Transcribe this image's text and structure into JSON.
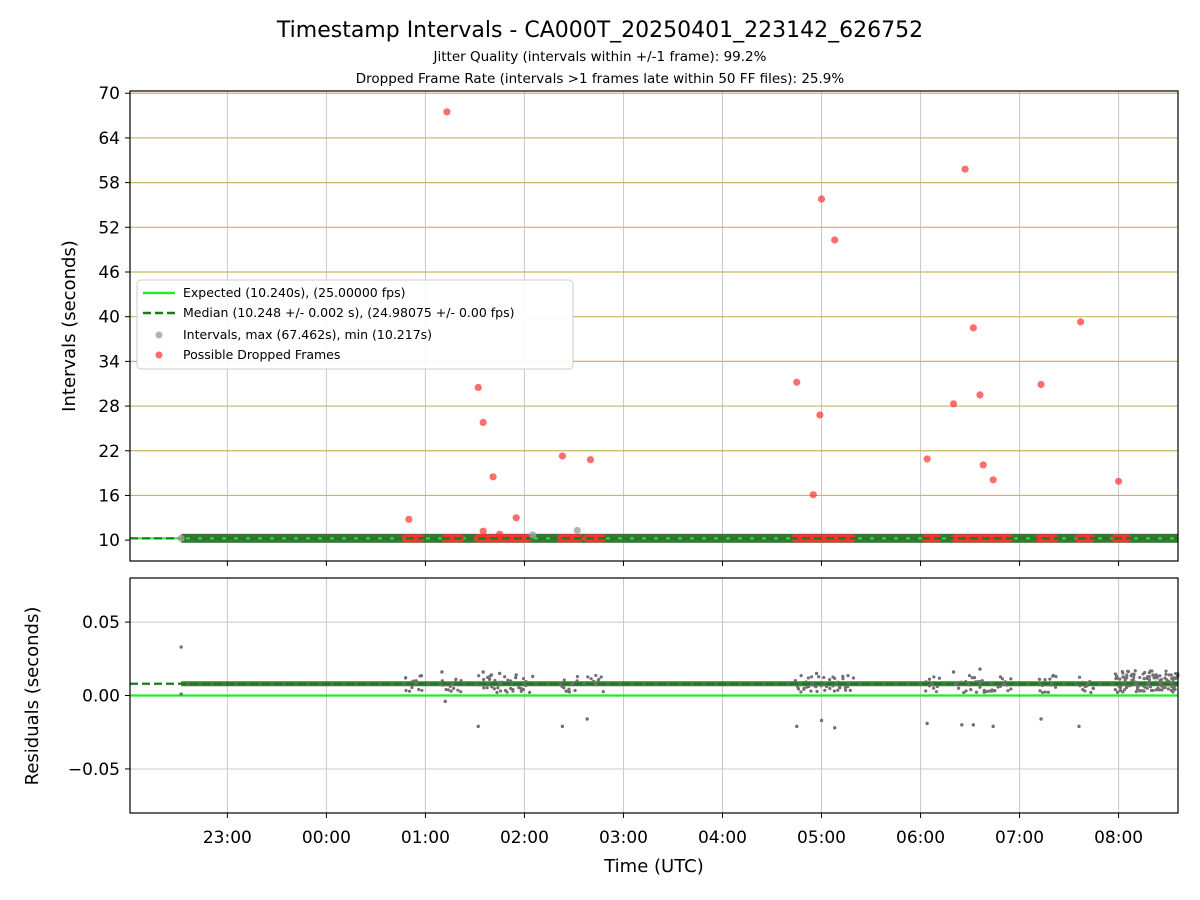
{
  "title": "Timestamp Intervals - CA000T_20250401_223142_626752",
  "subtitle_lines": [
    "Jitter Quality (intervals within +/-1 frame): 99.2%",
    "Dropped Frame Rate (intervals >1 frames late within 50 FF files): 25.9%"
  ],
  "colors": {
    "expected": "#22ee22",
    "median": "#1a7a1a",
    "interval_points": "#a0a0a0",
    "dropped_points": "#ff3030",
    "residual_points": "#707070",
    "top_gridlines": "#c8b464",
    "vertical_gridlines": "#c8c8c8",
    "median_band": "#2e6e2e"
  },
  "chart_data": [
    {
      "type": "scatter",
      "panel": "intervals",
      "xlabel": "",
      "ylabel": "Intervals (seconds)",
      "x_ticks": [
        "23:00",
        "00:00",
        "01:00",
        "02:00",
        "03:00",
        "04:00",
        "05:00",
        "06:00",
        "07:00",
        "08:00"
      ],
      "xlim": [
        "22:01",
        "08:36"
      ],
      "y_ticks": [
        10,
        16,
        22,
        28,
        34,
        40,
        46,
        52,
        58,
        64,
        70
      ],
      "ylim": [
        7.2,
        70.3
      ],
      "grid": "horizontal and vertical",
      "legend_position": "center-left",
      "legend": [
        "Expected (10.240s), (25.00000 fps)",
        "Median (10.248 +/- 0.002 s), (24.98075 +/- 0.00 fps)",
        "Intervals, max (67.462s), min (10.217s)",
        "Possible Dropped Frames"
      ],
      "expected_interval": 10.24,
      "median_interval": 10.248,
      "series": [
        {
          "name": "Intervals, max (67.462s), min (10.217s)",
          "x": [
            "22:32",
            "02:05",
            "02:32"
          ],
          "y": [
            10.25,
            10.7,
            11.3
          ]
        },
        {
          "name": "Possible Dropped Frames",
          "x": [
            "00:50",
            "01:13",
            "01:32",
            "01:35",
            "01:35",
            "01:41",
            "01:45",
            "01:55",
            "02:23",
            "02:40",
            "04:45",
            "04:55",
            "04:59",
            "05:00",
            "05:08",
            "06:04",
            "06:20",
            "06:27",
            "06:32",
            "06:36",
            "06:38",
            "06:44",
            "07:13",
            "07:37",
            "08:00"
          ],
          "y": [
            12.8,
            67.5,
            30.5,
            25.8,
            11.2,
            18.5,
            10.8,
            13.0,
            21.3,
            20.8,
            31.2,
            16.1,
            26.8,
            55.8,
            50.3,
            20.9,
            28.3,
            59.8,
            38.5,
            29.5,
            20.1,
            18.1,
            30.9,
            39.3,
            17.9
          ]
        }
      ],
      "dropped_clusters": [
        [
          "00:48",
          "00:58"
        ],
        [
          "01:12",
          "01:22"
        ],
        [
          "01:32",
          "01:52"
        ],
        [
          "01:53",
          "02:03"
        ],
        [
          "02:22",
          "02:33"
        ],
        [
          "02:38",
          "02:48"
        ],
        [
          "04:44",
          "05:19"
        ],
        [
          "06:03",
          "06:11"
        ],
        [
          "06:21",
          "06:55"
        ],
        [
          "07:12",
          "07:22"
        ],
        [
          "07:36",
          "07:45"
        ],
        [
          "07:58",
          "08:07"
        ]
      ]
    },
    {
      "type": "scatter",
      "panel": "residuals",
      "xlabel": "Time (UTC)",
      "ylabel": "Residuals (seconds)",
      "x_ticks": [
        "23:00",
        "00:00",
        "01:00",
        "02:00",
        "03:00",
        "04:00",
        "05:00",
        "06:00",
        "07:00",
        "08:00"
      ],
      "xlim": [
        "22:01",
        "08:36"
      ],
      "y_ticks": [
        -0.05,
        0.0,
        0.05
      ],
      "y_tick_labels": [
        "−0.05",
        "0.00",
        "0.05"
      ],
      "ylim": [
        -0.08,
        0.08
      ],
      "grid": "horizontal and vertical",
      "expected_residual": 0.0,
      "median_residual": 0.008,
      "series": [
        {
          "name": "",
          "x": [
            "22:32",
            "22:32",
            "00:48",
            "01:10",
            "01:12",
            "01:32",
            "01:35",
            "01:40",
            "01:45",
            "01:55",
            "02:05",
            "02:23",
            "02:38",
            "04:45",
            "04:57",
            "05:00",
            "05:08",
            "06:04",
            "06:20",
            "06:25",
            "06:32",
            "06:36",
            "06:44",
            "07:13",
            "07:36"
          ],
          "y": [
            0.033,
            0.001,
            0.012,
            0.016,
            -0.004,
            -0.021,
            0.016,
            0.014,
            0.015,
            0.014,
            0.013,
            -0.021,
            -0.016,
            -0.021,
            0.015,
            -0.017,
            -0.022,
            -0.019,
            0.016,
            -0.02,
            -0.02,
            0.018,
            -0.021,
            -0.016,
            -0.021
          ]
        }
      ],
      "dense_bands": [
        [
          "00:48",
          "00:58"
        ],
        [
          "01:10",
          "01:22"
        ],
        [
          "01:32",
          "01:52"
        ],
        [
          "01:53",
          "02:03"
        ],
        [
          "02:22",
          "02:33"
        ],
        [
          "02:38",
          "02:48"
        ],
        [
          "04:44",
          "05:19"
        ],
        [
          "06:03",
          "06:11"
        ],
        [
          "06:21",
          "06:55"
        ],
        [
          "07:12",
          "07:22"
        ],
        [
          "07:36",
          "07:45"
        ],
        [
          "07:58",
          "08:36"
        ]
      ]
    }
  ]
}
